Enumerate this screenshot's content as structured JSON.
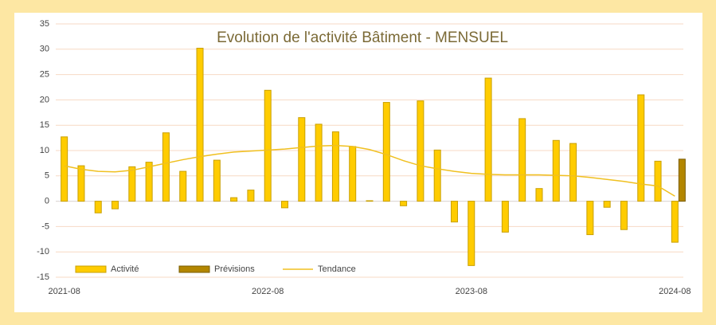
{
  "chart_data": {
    "type": "bar",
    "title": "Evolution de l'activité Bâtiment - MENSUEL",
    "categories": [
      "2021-08",
      null,
      null,
      null,
      null,
      null,
      null,
      null,
      null,
      null,
      null,
      null,
      "2022-08",
      null,
      null,
      null,
      null,
      null,
      null,
      null,
      null,
      null,
      null,
      null,
      "2023-08",
      null,
      null,
      null,
      null,
      null,
      null,
      null,
      null,
      null,
      null,
      null,
      "2024-08"
    ],
    "series": [
      {
        "name": "Activité",
        "type": "bar",
        "color": "#ffcc00",
        "edge": "#c9a000",
        "values": [
          12.7,
          7,
          -2.3,
          -1.5,
          6.8,
          7.7,
          13.5,
          5.9,
          30.2,
          8.1,
          0.7,
          2.2,
          21.9,
          -1.3,
          16.5,
          15.2,
          13.7,
          10.8,
          0.1,
          19.5,
          -0.9,
          19.8,
          10.1,
          -4.1,
          -12.7,
          24.3,
          -6.1,
          16.3,
          2.5,
          12,
          11.4,
          -6.6,
          -1.2,
          -5.6,
          21,
          7.9,
          -8.1
        ]
      },
      {
        "name": "Prévisions",
        "type": "bar",
        "color": "#b38600",
        "edge": "#7a5c00",
        "values": [
          null,
          null,
          null,
          null,
          null,
          null,
          null,
          null,
          null,
          null,
          null,
          null,
          null,
          null,
          null,
          null,
          null,
          null,
          null,
          null,
          null,
          null,
          null,
          null,
          null,
          null,
          null,
          null,
          null,
          null,
          null,
          null,
          null,
          null,
          null,
          null,
          8.3
        ]
      },
      {
        "name": "Tendance",
        "type": "line",
        "color": "#f0c020",
        "values": [
          7,
          6.3,
          5.9,
          5.8,
          6.1,
          6.8,
          7.5,
          8.2,
          8.8,
          9.3,
          9.7,
          9.9,
          10.1,
          10.3,
          10.6,
          10.9,
          11,
          10.8,
          10.2,
          9.2,
          8,
          7,
          6.4,
          5.9,
          5.5,
          5.3,
          5.2,
          5.2,
          5.2,
          5.1,
          5,
          4.7,
          4.3,
          3.9,
          3.4,
          3,
          1
        ]
      }
    ],
    "ylim": [
      -15,
      35
    ],
    "yticks": [
      -15,
      -10,
      -5,
      0,
      5,
      10,
      15,
      20,
      25,
      30,
      35
    ],
    "grid": true,
    "legend": "bottom-left"
  }
}
